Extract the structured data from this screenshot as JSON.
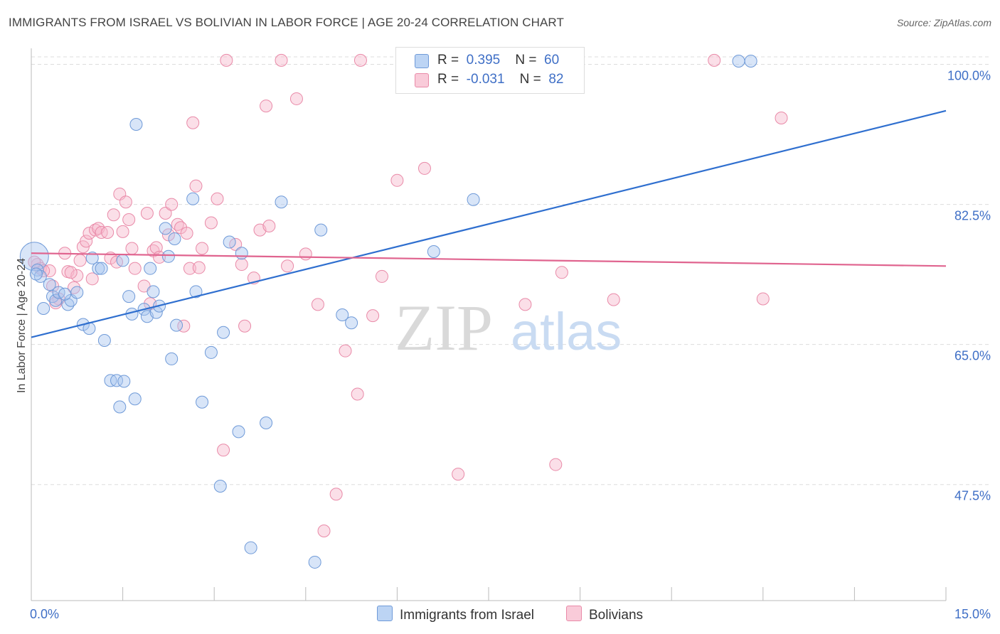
{
  "title": "IMMIGRANTS FROM ISRAEL VS BOLIVIAN IN LABOR FORCE | AGE 20-24 CORRELATION CHART",
  "source": "Source: ZipAtlas.com",
  "watermark": {
    "zip": "ZIP",
    "atlas": "atlas"
  },
  "legend": {
    "r_label": "R =",
    "n_label": "N =",
    "israel": {
      "r": "0.395",
      "n": "60"
    },
    "bolivian": {
      "r": "-0.031",
      "n": "82"
    }
  },
  "bottom_legend": {
    "israel": "Immigrants from Israel",
    "bolivian": "Bolivians"
  },
  "colors": {
    "israel_fill": "#a9c6ef",
    "israel_stroke": "#6f9ad8",
    "israel_line": "#2f6fcf",
    "bolivian_fill": "#f6b8cc",
    "bolivian_stroke": "#e98aa8",
    "bolivian_line": "#e0648f",
    "tick_label": "#3f6fc6",
    "grid": "#dddddd"
  },
  "chart_data": {
    "type": "scatter",
    "title": "IMMIGRANTS FROM ISRAEL VS BOLIVIAN IN LABOR FORCE | AGE 20-24 CORRELATION CHART",
    "xlabel": "",
    "ylabel": "In Labor Force | Age 20-24",
    "xlim": [
      0,
      15
    ],
    "ylim": [
      33,
      102
    ],
    "x_tick_labels": [
      {
        "value": 0,
        "label": "0.0%"
      },
      {
        "value": 15,
        "label": "15.0%"
      }
    ],
    "y_ticks": [
      {
        "value": 100,
        "label": "100.0%"
      },
      {
        "value": 82.5,
        "label": "82.5%"
      },
      {
        "value": 65,
        "label": "65.0%"
      },
      {
        "value": 47.5,
        "label": "47.5%"
      }
    ],
    "grid": "horizontal dashed",
    "legend_position": "top-center",
    "series": [
      {
        "name": "Immigrants from Israel",
        "trendline": {
          "x": [
            0,
            15
          ],
          "y": [
            65.9,
            94.2
          ]
        },
        "points": [
          [
            0.05,
            76.0
          ],
          [
            0.1,
            74.3
          ],
          [
            0.15,
            73.5
          ],
          [
            0.2,
            69.5
          ],
          [
            0.3,
            72.5
          ],
          [
            0.35,
            71.0
          ],
          [
            0.4,
            70.5
          ],
          [
            0.45,
            71.5
          ],
          [
            0.6,
            70.0
          ],
          [
            0.65,
            70.5
          ],
          [
            0.75,
            71.5
          ],
          [
            0.85,
            67.5
          ],
          [
            0.95,
            67.0
          ],
          [
            1.0,
            75.8
          ],
          [
            1.1,
            74.5
          ],
          [
            1.15,
            74.5
          ],
          [
            1.2,
            65.5
          ],
          [
            1.3,
            60.5
          ],
          [
            1.4,
            60.5
          ],
          [
            1.45,
            57.2
          ],
          [
            1.5,
            75.5
          ],
          [
            1.6,
            71.0
          ],
          [
            1.65,
            68.8
          ],
          [
            1.7,
            58.2
          ],
          [
            1.72,
            92.5
          ],
          [
            1.85,
            69.4
          ],
          [
            1.9,
            68.5
          ],
          [
            1.95,
            74.5
          ],
          [
            2.0,
            71.6
          ],
          [
            2.05,
            69.0
          ],
          [
            2.1,
            69.8
          ],
          [
            2.2,
            79.5
          ],
          [
            2.25,
            76.0
          ],
          [
            2.3,
            63.2
          ],
          [
            2.35,
            78.2
          ],
          [
            2.38,
            67.4
          ],
          [
            2.65,
            83.2
          ],
          [
            2.7,
            71.6
          ],
          [
            2.8,
            57.8
          ],
          [
            2.95,
            64.0
          ],
          [
            3.1,
            47.3
          ],
          [
            3.15,
            66.5
          ],
          [
            3.25,
            77.8
          ],
          [
            3.4,
            54.1
          ],
          [
            3.45,
            76.4
          ],
          [
            3.6,
            39.6
          ],
          [
            3.85,
            55.2
          ],
          [
            4.1,
            82.8
          ],
          [
            4.65,
            37.8
          ],
          [
            4.75,
            79.3
          ],
          [
            5.1,
            68.7
          ],
          [
            5.25,
            67.7
          ],
          [
            6.6,
            76.6
          ],
          [
            7.25,
            83.1
          ],
          [
            8.0,
            100.4
          ],
          [
            11.6,
            100.4
          ],
          [
            11.8,
            100.4
          ],
          [
            0.08,
            73.8
          ],
          [
            1.52,
            60.4
          ],
          [
            0.55,
            71.3
          ]
        ]
      },
      {
        "name": "Bolivians",
        "trendline": {
          "x": [
            0,
            15
          ],
          "y": [
            76.4,
            74.8
          ]
        },
        "points": [
          [
            0.1,
            75.0
          ],
          [
            0.15,
            74.5
          ],
          [
            0.3,
            74.2
          ],
          [
            0.35,
            72.3
          ],
          [
            0.45,
            70.7
          ],
          [
            0.55,
            76.4
          ],
          [
            0.6,
            74.1
          ],
          [
            0.7,
            72.1
          ],
          [
            0.75,
            73.6
          ],
          [
            0.8,
            75.5
          ],
          [
            0.85,
            77.2
          ],
          [
            0.9,
            77.9
          ],
          [
            0.95,
            78.9
          ],
          [
            1.0,
            73.2
          ],
          [
            1.05,
            79.3
          ],
          [
            1.1,
            79.5
          ],
          [
            1.15,
            79.0
          ],
          [
            1.25,
            79.0
          ],
          [
            1.3,
            75.8
          ],
          [
            1.35,
            81.2
          ],
          [
            1.4,
            75.3
          ],
          [
            1.45,
            83.8
          ],
          [
            1.5,
            79.1
          ],
          [
            1.55,
            82.8
          ],
          [
            1.6,
            80.6
          ],
          [
            1.65,
            77.0
          ],
          [
            1.7,
            74.5
          ],
          [
            1.85,
            72.3
          ],
          [
            1.9,
            81.4
          ],
          [
            1.95,
            70.1
          ],
          [
            2.0,
            76.7
          ],
          [
            2.05,
            77.1
          ],
          [
            2.1,
            75.9
          ],
          [
            2.2,
            81.4
          ],
          [
            2.25,
            78.7
          ],
          [
            2.3,
            82.5
          ],
          [
            2.4,
            80.0
          ],
          [
            2.45,
            79.6
          ],
          [
            2.5,
            67.3
          ],
          [
            2.55,
            78.9
          ],
          [
            2.6,
            74.5
          ],
          [
            2.65,
            92.7
          ],
          [
            2.7,
            84.8
          ],
          [
            2.75,
            74.6
          ],
          [
            2.8,
            77.0
          ],
          [
            2.95,
            80.2
          ],
          [
            3.05,
            83.2
          ],
          [
            3.15,
            51.8
          ],
          [
            3.2,
            100.5
          ],
          [
            3.35,
            77.5
          ],
          [
            3.45,
            75.0
          ],
          [
            3.5,
            67.3
          ],
          [
            3.65,
            73.3
          ],
          [
            3.75,
            79.3
          ],
          [
            3.85,
            94.8
          ],
          [
            3.9,
            79.8
          ],
          [
            4.1,
            100.5
          ],
          [
            4.2,
            74.8
          ],
          [
            4.35,
            95.7
          ],
          [
            4.5,
            76.3
          ],
          [
            4.7,
            70.0
          ],
          [
            4.8,
            41.7
          ],
          [
            5.0,
            46.3
          ],
          [
            5.15,
            64.2
          ],
          [
            5.35,
            58.8
          ],
          [
            5.4,
            100.5
          ],
          [
            5.6,
            68.6
          ],
          [
            5.75,
            73.5
          ],
          [
            6.0,
            85.5
          ],
          [
            6.45,
            87.0
          ],
          [
            7.0,
            48.8
          ],
          [
            8.1,
            70.0
          ],
          [
            8.6,
            50.0
          ],
          [
            8.7,
            74.0
          ],
          [
            9.55,
            70.6
          ],
          [
            11.2,
            100.5
          ],
          [
            12.0,
            70.7
          ],
          [
            12.3,
            93.3
          ],
          [
            0.05,
            75.3
          ],
          [
            0.2,
            74.2
          ],
          [
            0.4,
            70.2
          ],
          [
            0.65,
            74.0
          ]
        ]
      }
    ]
  }
}
